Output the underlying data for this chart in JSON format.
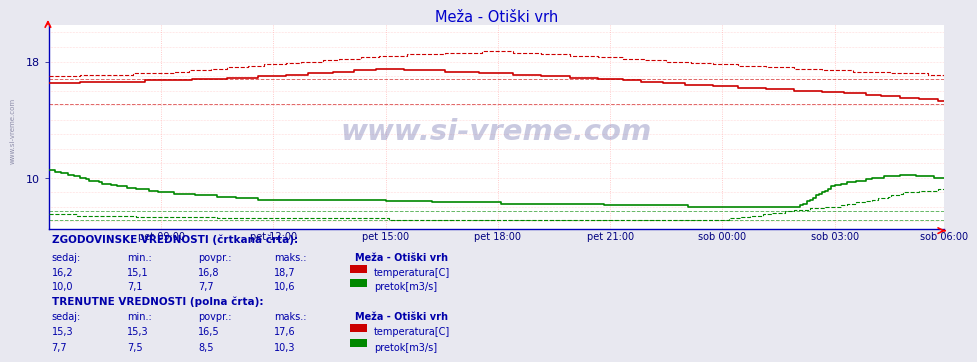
{
  "title": "Meža - Otiški vrh",
  "title_color": "#0000cc",
  "bg_color": "#e8e8f0",
  "plot_bg_color": "#ffffff",
  "x_tick_labels": [
    "pet 09:00",
    "pet 12:00",
    "pet 15:00",
    "pet 18:00",
    "pet 21:00",
    "sob 00:00",
    "sob 03:00",
    "sob 06:00"
  ],
  "x_tick_positions": [
    36,
    72,
    108,
    144,
    180,
    216,
    252,
    287
  ],
  "n_points": 288,
  "temp_solid_color": "#cc0000",
  "temp_dashed_color": "#cc0000",
  "flow_solid_color": "#008800",
  "flow_dashed_color": "#008800",
  "ymin": 6.5,
  "ymax": 20.5,
  "y_ticks": [
    10,
    18
  ],
  "watermark": "www.si-vreme.com",
  "hist_label": "ZGODOVINSKE VREDNOSTI (črtkana črta):",
  "curr_label": "TRENUTNE VREDNOSTI (polna črta):",
  "headers_label": "  sedaj:     min.:    povpr.:    maks.:",
  "station_label": "Meža - Otiški vrh",
  "hist_temp_vals": "  16,2        15,1      16,8       18,7",
  "hist_flow_vals": "  10,0         7,1        7,7       10,6",
  "curr_temp_vals": "  15,3        15,3      16,5       17,6",
  "curr_flow_vals": "   7,7         7,5        8,5       10,3",
  "temp_label": "temperatura[C]",
  "flow_label": "pretok[m3/s]"
}
